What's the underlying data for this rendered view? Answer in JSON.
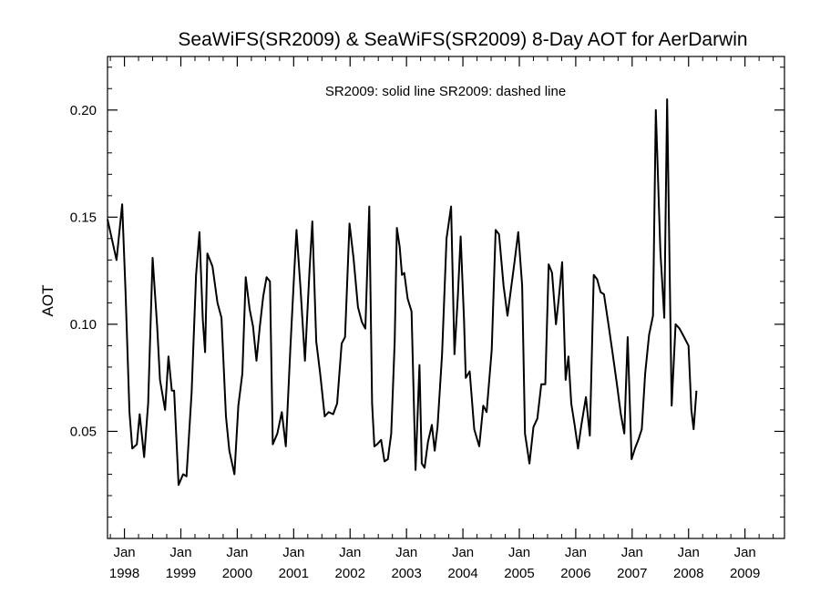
{
  "chart_data": {
    "type": "line",
    "title": "SeaWiFS(SR2009) & SeaWiFS(SR2009) 8-Day AOT for AerDarwin",
    "legend_text": "SR2009: solid line   SR2009: dashed line",
    "legend_position": "top-center",
    "ylabel": "AOT",
    "xlabel": "",
    "xlim": [
      1997.7,
      2009.7
    ],
    "ylim": [
      0.0,
      0.225
    ],
    "grid": false,
    "y_ticks": [
      {
        "value": 0.05,
        "label": "0.05"
      },
      {
        "value": 0.1,
        "label": "0.10"
      },
      {
        "value": 0.15,
        "label": "0.15"
      },
      {
        "value": 0.2,
        "label": "0.20"
      }
    ],
    "x_ticks": [
      {
        "value": 1998.0,
        "month": "Jan",
        "year": "1998"
      },
      {
        "value": 1999.0,
        "month": "Jan",
        "year": "1999"
      },
      {
        "value": 2000.0,
        "month": "Jan",
        "year": "2000"
      },
      {
        "value": 2001.0,
        "month": "Jan",
        "year": "2001"
      },
      {
        "value": 2002.0,
        "month": "Jan",
        "year": "2002"
      },
      {
        "value": 2003.0,
        "month": "Jan",
        "year": "2003"
      },
      {
        "value": 2004.0,
        "month": "Jan",
        "year": "2004"
      },
      {
        "value": 2005.0,
        "month": "Jan",
        "year": "2005"
      },
      {
        "value": 2006.0,
        "month": "Jan",
        "year": "2006"
      },
      {
        "value": 2007.0,
        "month": "Jan",
        "year": "2007"
      },
      {
        "value": 2008.0,
        "month": "Jan",
        "year": "2008"
      },
      {
        "value": 2009.0,
        "month": "Jan",
        "year": "2009"
      }
    ],
    "series": [
      {
        "style": "solid",
        "color": "#000000",
        "points": [
          [
            1997.7,
            0.149
          ],
          [
            1997.86,
            0.13
          ],
          [
            1997.96,
            0.156
          ],
          [
            1998.02,
            0.115
          ],
          [
            1998.09,
            0.059
          ],
          [
            1998.14,
            0.042
          ],
          [
            1998.22,
            0.044
          ],
          [
            1998.27,
            0.058
          ],
          [
            1998.35,
            0.038
          ],
          [
            1998.42,
            0.063
          ],
          [
            1998.5,
            0.131
          ],
          [
            1998.58,
            0.099
          ],
          [
            1998.63,
            0.074
          ],
          [
            1998.72,
            0.06
          ],
          [
            1998.78,
            0.085
          ],
          [
            1998.84,
            0.069
          ],
          [
            1998.88,
            0.069
          ],
          [
            1998.96,
            0.025
          ],
          [
            1999.04,
            0.03
          ],
          [
            1999.1,
            0.029
          ],
          [
            1999.19,
            0.068
          ],
          [
            1999.27,
            0.123
          ],
          [
            1999.33,
            0.143
          ],
          [
            1999.39,
            0.102
          ],
          [
            1999.43,
            0.087
          ],
          [
            1999.47,
            0.133
          ],
          [
            1999.56,
            0.127
          ],
          [
            1999.65,
            0.11
          ],
          [
            1999.72,
            0.103
          ],
          [
            1999.8,
            0.057
          ],
          [
            1999.86,
            0.041
          ],
          [
            1999.95,
            0.03
          ],
          [
            2000.02,
            0.062
          ],
          [
            2000.09,
            0.077
          ],
          [
            2000.15,
            0.122
          ],
          [
            2000.22,
            0.107
          ],
          [
            2000.28,
            0.099
          ],
          [
            2000.34,
            0.083
          ],
          [
            2000.4,
            0.099
          ],
          [
            2000.46,
            0.113
          ],
          [
            2000.52,
            0.122
          ],
          [
            2000.58,
            0.12
          ],
          [
            2000.63,
            0.044
          ],
          [
            2000.71,
            0.049
          ],
          [
            2000.79,
            0.059
          ],
          [
            2000.86,
            0.043
          ],
          [
            2000.94,
            0.088
          ],
          [
            2001.01,
            0.124
          ],
          [
            2001.05,
            0.144
          ],
          [
            2001.12,
            0.117
          ],
          [
            2001.2,
            0.083
          ],
          [
            2001.28,
            0.125
          ],
          [
            2001.33,
            0.148
          ],
          [
            2001.4,
            0.092
          ],
          [
            2001.47,
            0.077
          ],
          [
            2001.55,
            0.057
          ],
          [
            2001.62,
            0.059
          ],
          [
            2001.7,
            0.058
          ],
          [
            2001.77,
            0.063
          ],
          [
            2001.85,
            0.091
          ],
          [
            2001.91,
            0.094
          ],
          [
            2001.99,
            0.147
          ],
          [
            2002.06,
            0.131
          ],
          [
            2002.14,
            0.108
          ],
          [
            2002.21,
            0.101
          ],
          [
            2002.27,
            0.098
          ],
          [
            2002.34,
            0.155
          ],
          [
            2002.39,
            0.063
          ],
          [
            2002.43,
            0.043
          ],
          [
            2002.48,
            0.044
          ],
          [
            2002.55,
            0.046
          ],
          [
            2002.61,
            0.036
          ],
          [
            2002.67,
            0.037
          ],
          [
            2002.73,
            0.049
          ],
          [
            2002.79,
            0.092
          ],
          [
            2002.83,
            0.145
          ],
          [
            2002.88,
            0.136
          ],
          [
            2002.92,
            0.123
          ],
          [
            2002.96,
            0.124
          ],
          [
            2003.02,
            0.112
          ],
          [
            2003.09,
            0.106
          ],
          [
            2003.16,
            0.032
          ],
          [
            2003.23,
            0.081
          ],
          [
            2003.27,
            0.035
          ],
          [
            2003.32,
            0.033
          ],
          [
            2003.38,
            0.045
          ],
          [
            2003.45,
            0.053
          ],
          [
            2003.5,
            0.041
          ],
          [
            2003.55,
            0.052
          ],
          [
            2003.63,
            0.086
          ],
          [
            2003.71,
            0.14
          ],
          [
            2003.79,
            0.155
          ],
          [
            2003.85,
            0.086
          ],
          [
            2003.91,
            0.113
          ],
          [
            2003.96,
            0.141
          ],
          [
            2004.02,
            0.102
          ],
          [
            2004.05,
            0.075
          ],
          [
            2004.12,
            0.078
          ],
          [
            2004.2,
            0.051
          ],
          [
            2004.29,
            0.043
          ],
          [
            2004.36,
            0.062
          ],
          [
            2004.42,
            0.059
          ],
          [
            2004.51,
            0.088
          ],
          [
            2004.58,
            0.144
          ],
          [
            2004.64,
            0.142
          ],
          [
            2004.72,
            0.118
          ],
          [
            2004.79,
            0.104
          ],
          [
            2004.86,
            0.118
          ],
          [
            2004.92,
            0.13
          ],
          [
            2004.98,
            0.143
          ],
          [
            2005.05,
            0.118
          ],
          [
            2005.1,
            0.049
          ],
          [
            2005.18,
            0.035
          ],
          [
            2005.25,
            0.052
          ],
          [
            2005.32,
            0.056
          ],
          [
            2005.39,
            0.072
          ],
          [
            2005.46,
            0.072
          ],
          [
            2005.52,
            0.128
          ],
          [
            2005.58,
            0.124
          ],
          [
            2005.65,
            0.1
          ],
          [
            2005.7,
            0.112
          ],
          [
            2005.76,
            0.129
          ],
          [
            2005.82,
            0.074
          ],
          [
            2005.87,
            0.085
          ],
          [
            2005.92,
            0.063
          ],
          [
            2005.98,
            0.053
          ],
          [
            2006.04,
            0.042
          ],
          [
            2006.1,
            0.053
          ],
          [
            2006.18,
            0.066
          ],
          [
            2006.25,
            0.048
          ],
          [
            2006.32,
            0.123
          ],
          [
            2006.38,
            0.121
          ],
          [
            2006.44,
            0.115
          ],
          [
            2006.5,
            0.114
          ],
          [
            2006.58,
            0.1
          ],
          [
            2006.65,
            0.087
          ],
          [
            2006.73,
            0.072
          ],
          [
            2006.8,
            0.058
          ],
          [
            2006.86,
            0.049
          ],
          [
            2006.92,
            0.094
          ],
          [
            2006.99,
            0.037
          ],
          [
            2007.05,
            0.042
          ],
          [
            2007.11,
            0.046
          ],
          [
            2007.17,
            0.051
          ],
          [
            2007.23,
            0.077
          ],
          [
            2007.3,
            0.095
          ],
          [
            2007.37,
            0.104
          ],
          [
            2007.42,
            0.2
          ],
          [
            2007.5,
            0.134
          ],
          [
            2007.57,
            0.103
          ],
          [
            2007.62,
            0.205
          ],
          [
            2007.7,
            0.062
          ],
          [
            2007.77,
            0.1
          ],
          [
            2007.84,
            0.098
          ],
          [
            2007.9,
            0.095
          ],
          [
            2008.0,
            0.09
          ],
          [
            2008.05,
            0.06
          ],
          [
            2008.09,
            0.051
          ],
          [
            2008.14,
            0.069
          ]
        ]
      }
    ]
  }
}
